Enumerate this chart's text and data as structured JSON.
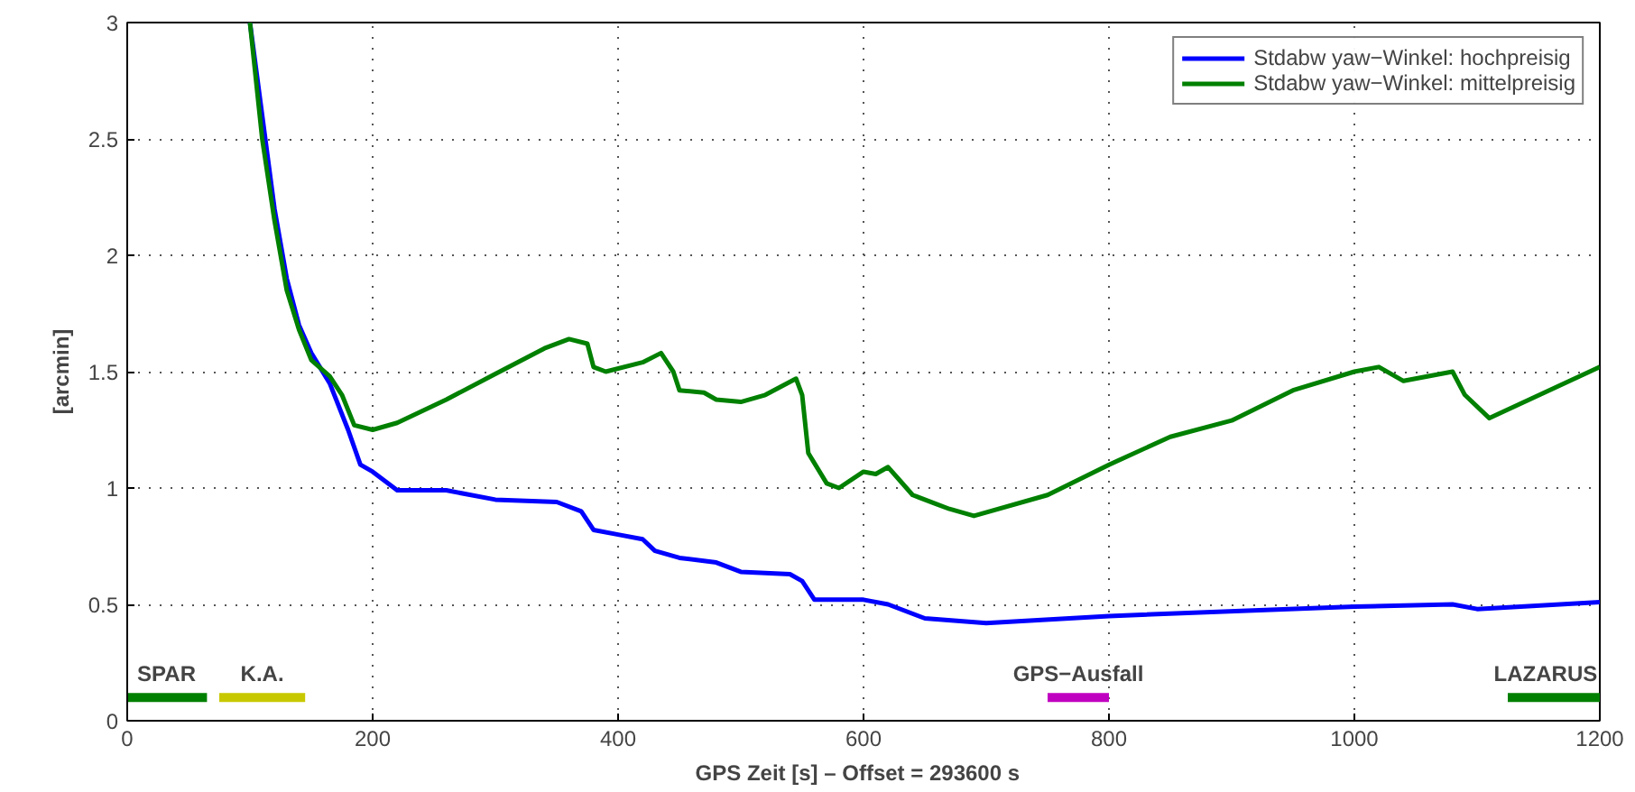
{
  "chart_data": {
    "type": "line",
    "xlabel": "GPS Zeit [s] – Offset =   293600 s",
    "ylabel": "[arcmin]",
    "xlim": [
      0,
      1200
    ],
    "ylim": [
      0,
      3
    ],
    "xticks": [
      0,
      200,
      400,
      600,
      800,
      1000,
      1200
    ],
    "yticks": [
      0,
      0.5,
      1,
      1.5,
      2,
      2.5,
      3
    ],
    "grid": true,
    "legend": "top right",
    "line_style": "solid",
    "marker": "none",
    "series": [
      {
        "name": "Stdabw yaw−Winkel: hochpreisig",
        "color": "#0000ff",
        "x": [
          100,
          110,
          120,
          130,
          140,
          150,
          165,
          180,
          190,
          200,
          220,
          260,
          300,
          350,
          370,
          380,
          400,
          420,
          430,
          450,
          480,
          500,
          540,
          550,
          560,
          600,
          620,
          650,
          700,
          800,
          1000,
          1080,
          1100,
          1200
        ],
        "values": [
          3,
          2.6,
          2.2,
          1.9,
          1.7,
          1.58,
          1.45,
          1.25,
          1.1,
          1.07,
          0.99,
          0.99,
          0.95,
          0.94,
          0.9,
          0.82,
          0.8,
          0.78,
          0.73,
          0.7,
          0.68,
          0.64,
          0.63,
          0.6,
          0.52,
          0.52,
          0.5,
          0.44,
          0.42,
          0.45,
          0.49,
          0.5,
          0.48,
          0.51
        ]
      },
      {
        "name": "Stdabw yaw−Winkel: mittelpreisig",
        "color": "#008000",
        "x": [
          100,
          110,
          120,
          130,
          140,
          150,
          165,
          175,
          185,
          200,
          220,
          260,
          300,
          340,
          360,
          375,
          380,
          390,
          420,
          435,
          445,
          450,
          470,
          480,
          500,
          520,
          545,
          550,
          555,
          570,
          580,
          600,
          610,
          620,
          630,
          640,
          660,
          670,
          690,
          750,
          800,
          850,
          900,
          950,
          1000,
          1020,
          1040,
          1080,
          1090,
          1110,
          1200
        ],
        "values": [
          3,
          2.5,
          2.15,
          1.85,
          1.68,
          1.55,
          1.48,
          1.4,
          1.27,
          1.25,
          1.28,
          1.38,
          1.49,
          1.6,
          1.64,
          1.62,
          1.52,
          1.5,
          1.54,
          1.58,
          1.5,
          1.42,
          1.41,
          1.38,
          1.37,
          1.4,
          1.47,
          1.4,
          1.15,
          1.02,
          1.0,
          1.07,
          1.06,
          1.09,
          1.03,
          0.97,
          0.93,
          0.91,
          0.88,
          0.97,
          1.1,
          1.22,
          1.29,
          1.42,
          1.5,
          1.52,
          1.46,
          1.5,
          1.4,
          1.3,
          1.52
        ]
      },
      {
        "color": "#008000",
        "x": [
          0,
          65
        ],
        "values": [
          0.1,
          0.1
        ]
      },
      {
        "color": "#c8c800",
        "x": [
          75,
          145
        ],
        "values": [
          0.1,
          0.1
        ]
      },
      {
        "color": "#c000c0",
        "x": [
          750,
          800
        ],
        "values": [
          0.1,
          0.1
        ]
      },
      {
        "color": "#008000",
        "x": [
          1125,
          1200
        ],
        "values": [
          0.1,
          0.1
        ]
      }
    ],
    "annotations": [
      {
        "text": "SPAR",
        "x": 32,
        "y": 0.1
      },
      {
        "text": "K.A.",
        "x": 110,
        "y": 0.1
      },
      {
        "text": "GPS−Ausfall",
        "x": 775,
        "y": 0.1
      },
      {
        "text": "LAZARUS",
        "x": 1162,
        "y": 0.1
      }
    ]
  }
}
